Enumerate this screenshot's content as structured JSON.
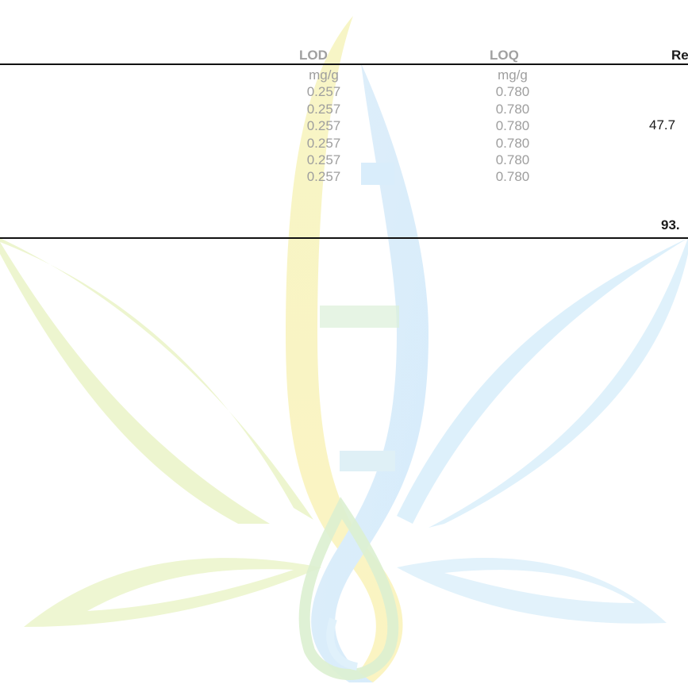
{
  "table": {
    "headers": {
      "lod": "LOD",
      "loq": "LOQ",
      "result": "Re"
    },
    "lod_column": [
      "mg/g",
      "0.257",
      "0.257",
      "0.257",
      "0.257",
      "0.257",
      "0.257"
    ],
    "loq_column": [
      "mg/g",
      "0.780",
      "0.780",
      "0.780",
      "0.780",
      "0.780",
      "0.780"
    ],
    "result_value": "47.7",
    "result_total": "93."
  },
  "watermark": {
    "icon": "cannabis-leaf-dna-drop-logo",
    "colors": {
      "green": "#eef6cf",
      "yellow": "#fbf6c4",
      "blue": "#d8eefb",
      "lightblue": "#e4f4fc"
    }
  }
}
